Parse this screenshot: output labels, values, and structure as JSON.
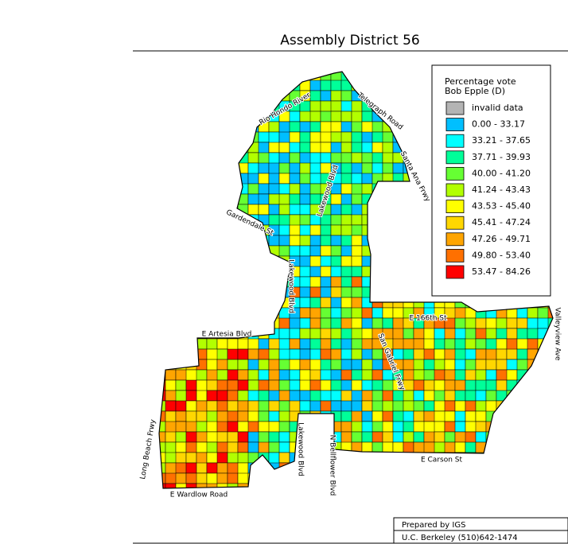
{
  "title": "Assembly District 56",
  "legend": {
    "title": [
      "Percentage vote",
      "Bob Epple (D)"
    ],
    "items": [
      {
        "label": "invalid data",
        "color": "#b4b4b4"
      },
      {
        "label": "0.00 - 33.17",
        "color": "#00bfff"
      },
      {
        "label": "33.21 - 37.65",
        "color": "#00ffff"
      },
      {
        "label": "37.71 - 39.93",
        "color": "#00ff99"
      },
      {
        "label": "40.00 - 41.20",
        "color": "#66ff33"
      },
      {
        "label": "41.24 - 43.43",
        "color": "#b2ff00"
      },
      {
        "label": "43.53 - 45.40",
        "color": "#ffff00"
      },
      {
        "label": "45.41 - 47.24",
        "color": "#ffd700"
      },
      {
        "label": "47.26 - 49.71",
        "color": "#ffa500"
      },
      {
        "label": "49.80 - 53.40",
        "color": "#ff7000"
      },
      {
        "label": "53.47 - 84.26",
        "color": "#ff0000"
      }
    ]
  },
  "streets": [
    {
      "label": "Rio Hondo River"
    },
    {
      "label": "Telegraph Road"
    },
    {
      "label": "Santa Ana Frwy"
    },
    {
      "label": "Gardendale St"
    },
    {
      "label": "Lakewood Blvd"
    },
    {
      "label": "Lakewood Blvd"
    },
    {
      "label": "E 166th St"
    },
    {
      "label": "E Artesia Blvd"
    },
    {
      "label": "San Gabriel Frwy"
    },
    {
      "label": "Valleyview Ave"
    },
    {
      "label": "Long Beach Frwy"
    },
    {
      "label": "Lakewood Blvd"
    },
    {
      "label": "N Bellflower Blvd"
    },
    {
      "label": "E Carson St"
    },
    {
      "label": "E Wardlow Road"
    }
  ],
  "credits": [
    "Prepared by IGS",
    "U.C. Berkeley (510)642-1474"
  ]
}
